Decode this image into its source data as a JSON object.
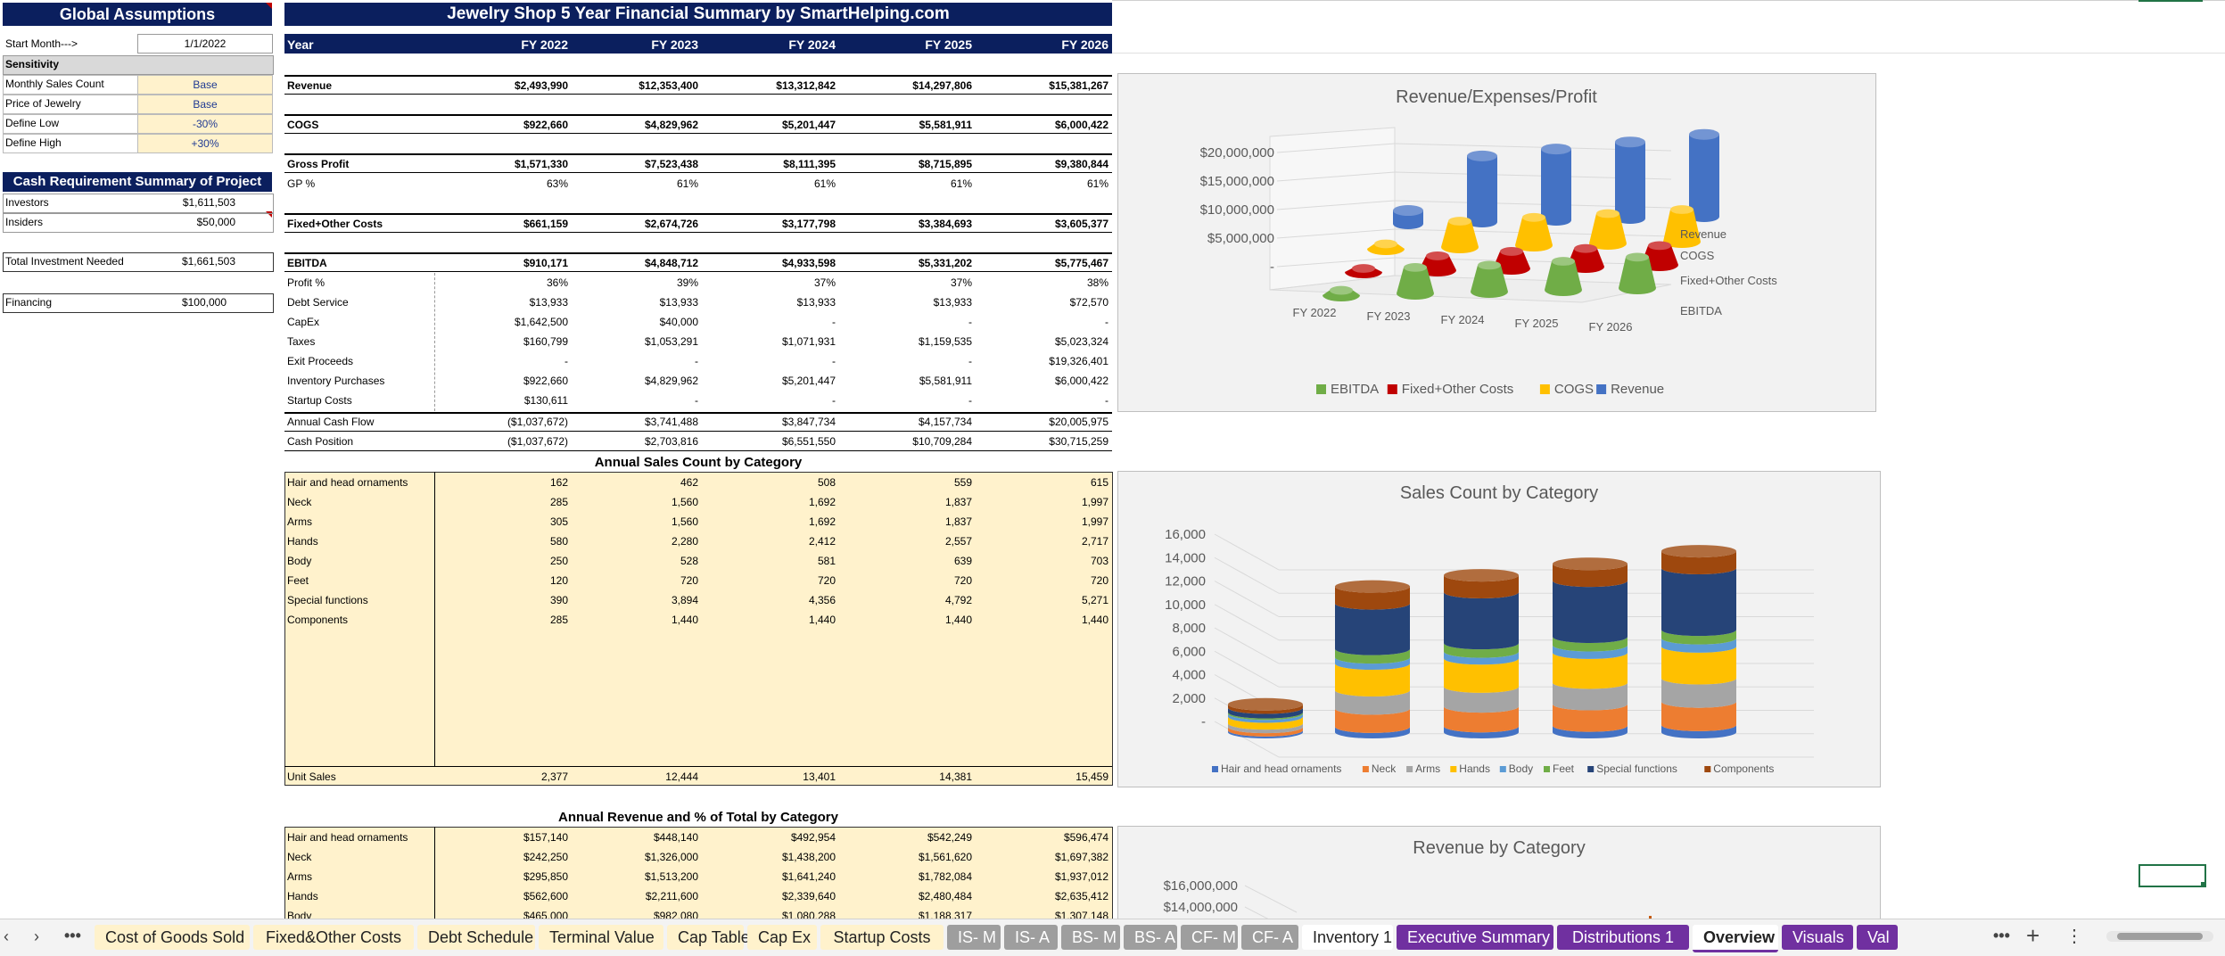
{
  "assumptions": {
    "title": "Global Assumptions",
    "start_month_label": "Start Month--->",
    "start_month_value": "1/1/2022",
    "sensitivity_label": "Sensitivity",
    "rows": [
      {
        "label": "Monthly Sales Count",
        "value": "Base"
      },
      {
        "label": "Price of Jewelry",
        "value": "Base"
      },
      {
        "label": "Define Low",
        "value": "-30%"
      },
      {
        "label": "Define High",
        "value": "+30%"
      }
    ]
  },
  "cash": {
    "title": "Cash Requirement Summary of Project",
    "investors_label": "Investors",
    "investors_value": "$1,611,503",
    "insiders_label": "Insiders",
    "insiders_value": "$50,000",
    "total_label": "Total Investment Needed",
    "total_value": "$1,661,503",
    "financing_label": "Financing",
    "financing_value": "$100,000"
  },
  "summary": {
    "title": "Jewelry Shop 5 Year Financial Summary by SmartHelping.com",
    "year_label": "Year",
    "years": [
      "FY 2022",
      "FY 2023",
      "FY 2024",
      "FY 2025",
      "FY 2026"
    ],
    "revenue": {
      "label": "Revenue",
      "values": [
        "$2,493,990",
        "$12,353,400",
        "$13,312,842",
        "$14,297,806",
        "$15,381,267"
      ]
    },
    "cogs": {
      "label": "COGS",
      "values": [
        "$922,660",
        "$4,829,962",
        "$5,201,447",
        "$5,581,911",
        "$6,000,422"
      ]
    },
    "gross_profit": {
      "label": "Gross Profit",
      "values": [
        "$1,571,330",
        "$7,523,438",
        "$8,111,395",
        "$8,715,895",
        "$9,380,844"
      ]
    },
    "gp_pct": {
      "label": "GP %",
      "values": [
        "63%",
        "61%",
        "61%",
        "61%",
        "61%"
      ]
    },
    "fixed": {
      "label": "Fixed+Other Costs",
      "values": [
        "$661,159",
        "$2,674,726",
        "$3,177,798",
        "$3,384,693",
        "$3,605,377"
      ]
    },
    "ebitda": {
      "label": "EBITDA",
      "values": [
        "$910,171",
        "$4,848,712",
        "$4,933,598",
        "$5,331,202",
        "$5,775,467"
      ]
    },
    "detail": [
      {
        "label": "Profit %",
        "values": [
          "36%",
          "39%",
          "37%",
          "37%",
          "38%"
        ]
      },
      {
        "label": "Debt Service",
        "values": [
          "$13,933",
          "$13,933",
          "$13,933",
          "$13,933",
          "$72,570"
        ]
      },
      {
        "label": "CapEx",
        "values": [
          "$1,642,500",
          "$40,000",
          "-",
          "-",
          "-"
        ]
      },
      {
        "label": "Taxes",
        "values": [
          "$160,799",
          "$1,053,291",
          "$1,071,931",
          "$1,159,535",
          "$5,023,324"
        ]
      },
      {
        "label": "Exit Proceeds",
        "values": [
          "-",
          "-",
          "-",
          "-",
          "$19,326,401"
        ]
      },
      {
        "label": "Inventory Purchases",
        "values": [
          "$922,660",
          "$4,829,962",
          "$5,201,447",
          "$5,581,911",
          "$6,000,422"
        ]
      },
      {
        "label": "Startup Costs",
        "values": [
          "$130,611",
          "-",
          "-",
          "-",
          "-"
        ]
      }
    ],
    "annual_cash_flow": {
      "label": "Annual Cash Flow",
      "values": [
        "($1,037,672)",
        "$3,741,488",
        "$3,847,734",
        "$4,157,734",
        "$20,005,975"
      ]
    },
    "cash_position": {
      "label": "Cash Position",
      "values": [
        "($1,037,672)",
        "$2,703,816",
        "$6,551,550",
        "$10,709,284",
        "$30,715,259"
      ]
    }
  },
  "sales": {
    "title": "Annual Sales Count by Category",
    "rows": [
      {
        "label": "Hair and head ornaments",
        "values": [
          "162",
          "462",
          "508",
          "559",
          "615"
        ]
      },
      {
        "label": "Neck",
        "values": [
          "285",
          "1,560",
          "1,692",
          "1,837",
          "1,997"
        ]
      },
      {
        "label": "Arms",
        "values": [
          "305",
          "1,560",
          "1,692",
          "1,837",
          "1,997"
        ]
      },
      {
        "label": "Hands",
        "values": [
          "580",
          "2,280",
          "2,412",
          "2,557",
          "2,717"
        ]
      },
      {
        "label": "Body",
        "values": [
          "250",
          "528",
          "581",
          "639",
          "703"
        ]
      },
      {
        "label": "Feet",
        "values": [
          "120",
          "720",
          "720",
          "720",
          "720"
        ]
      },
      {
        "label": "Special functions",
        "values": [
          "390",
          "3,894",
          "4,356",
          "4,792",
          "5,271"
        ]
      },
      {
        "label": "Components",
        "values": [
          "285",
          "1,440",
          "1,440",
          "1,440",
          "1,440"
        ]
      }
    ],
    "unit_sales": {
      "label": "Unit Sales",
      "values": [
        "2,377",
        "12,444",
        "13,401",
        "14,381",
        "15,459"
      ]
    }
  },
  "revcat": {
    "title": "Annual Revenue and % of Total by Category",
    "rows": [
      {
        "label": "Hair and head ornaments",
        "values": [
          "$157,140",
          "$448,140",
          "$492,954",
          "$542,249",
          "$596,474"
        ]
      },
      {
        "label": "Neck",
        "values": [
          "$242,250",
          "$1,326,000",
          "$1,438,200",
          "$1,561,620",
          "$1,697,382"
        ]
      },
      {
        "label": "Arms",
        "values": [
          "$295,850",
          "$1,513,200",
          "$1,641,240",
          "$1,782,084",
          "$1,937,012"
        ]
      },
      {
        "label": "Hands",
        "values": [
          "$562,600",
          "$2,211,600",
          "$2,339,640",
          "$2,480,484",
          "$2,635,412"
        ]
      },
      {
        "label": "Body",
        "values": [
          "$465,000",
          "$982,080",
          "$1,080,288",
          "$1,188,317",
          "$1,307,148"
        ]
      }
    ]
  },
  "chart_data": [
    {
      "type": "bar",
      "title": "Revenue/Expenses/Profit",
      "categories": [
        "FY 2022",
        "FY 2023",
        "FY 2024",
        "FY 2025",
        "FY 2026"
      ],
      "series": [
        {
          "name": "Revenue",
          "color": "#4472c4",
          "values": [
            2493990,
            12353400,
            13312842,
            14297806,
            15381267
          ]
        },
        {
          "name": "COGS",
          "color": "#ffc000",
          "values": [
            922660,
            4829962,
            5201447,
            5581911,
            6000422
          ]
        },
        {
          "name": "Fixed+Other Costs",
          "color": "#c00000",
          "values": [
            661159,
            2674726,
            3177798,
            3384693,
            3605377
          ]
        },
        {
          "name": "EBITDA",
          "color": "#70ad47",
          "values": [
            910171,
            4848712,
            4933598,
            5331202,
            5775467
          ]
        }
      ],
      "y_ticks": [
        "$20,000,000",
        "$15,000,000",
        "$10,000,000",
        "$5,000,000",
        "-"
      ],
      "ylim": [
        0,
        20000000
      ],
      "legend": [
        "EBITDA",
        "Fixed+Other Costs",
        "COGS",
        "Revenue"
      ],
      "legend_position": "bottom"
    },
    {
      "type": "bar",
      "title": "Sales Count by Category",
      "categories": [
        "FY 2022",
        "FY 2023",
        "FY 2024",
        "FY 2025",
        "FY 2026"
      ],
      "stacked": true,
      "series": [
        {
          "name": "Hair and head ornaments",
          "color": "#4472c4",
          "values": [
            162,
            462,
            508,
            559,
            615
          ]
        },
        {
          "name": "Neck",
          "color": "#ed7d31",
          "values": [
            285,
            1560,
            1692,
            1837,
            1997
          ]
        },
        {
          "name": "Arms",
          "color": "#a5a5a5",
          "values": [
            305,
            1560,
            1692,
            1837,
            1997
          ]
        },
        {
          "name": "Hands",
          "color": "#ffc000",
          "values": [
            580,
            2280,
            2412,
            2557,
            2717
          ]
        },
        {
          "name": "Body",
          "color": "#5b9bd5",
          "values": [
            250,
            528,
            581,
            639,
            703
          ]
        },
        {
          "name": "Feet",
          "color": "#70ad47",
          "values": [
            120,
            720,
            720,
            720,
            720
          ]
        },
        {
          "name": "Special functions",
          "color": "#264478",
          "values": [
            390,
            3894,
            4356,
            4792,
            5271
          ]
        },
        {
          "name": "Components",
          "color": "#9e480e",
          "values": [
            285,
            1440,
            1440,
            1440,
            1440
          ]
        }
      ],
      "y_ticks": [
        "16,000",
        "14,000",
        "12,000",
        "10,000",
        "8,000",
        "6,000",
        "4,000",
        "2,000",
        "-"
      ],
      "ylim": [
        0,
        16000
      ],
      "legend_position": "bottom"
    },
    {
      "type": "bar",
      "title": "Revenue by Category",
      "y_ticks": [
        "$16,000,000",
        "$14,000,000"
      ]
    }
  ],
  "tabs": {
    "items": [
      {
        "label": "Cost of Goods Sold",
        "style": "yellow"
      },
      {
        "label": "Fixed&Other Costs",
        "style": "yellow"
      },
      {
        "label": "Debt Schedule",
        "style": "yellow"
      },
      {
        "label": "Terminal Value",
        "style": "yellow"
      },
      {
        "label": "Cap Table",
        "style": "yellow"
      },
      {
        "label": "Cap Ex",
        "style": "yellow"
      },
      {
        "label": "Startup Costs",
        "style": "yellow"
      },
      {
        "label": "IS- M",
        "style": "gray"
      },
      {
        "label": "IS- A",
        "style": "gray"
      },
      {
        "label": "BS- M",
        "style": "gray"
      },
      {
        "label": "BS- A",
        "style": "gray"
      },
      {
        "label": "CF- M",
        "style": "gray"
      },
      {
        "label": "CF- A",
        "style": "gray"
      },
      {
        "label": "Inventory 1",
        "style": "plain"
      },
      {
        "label": "Executive Summary",
        "style": "purple"
      },
      {
        "label": "Distributions 1",
        "style": "purple"
      },
      {
        "label": "Overview",
        "style": "active"
      },
      {
        "label": "Visuals",
        "style": "purple"
      },
      {
        "label": "Val",
        "style": "purple"
      }
    ]
  }
}
